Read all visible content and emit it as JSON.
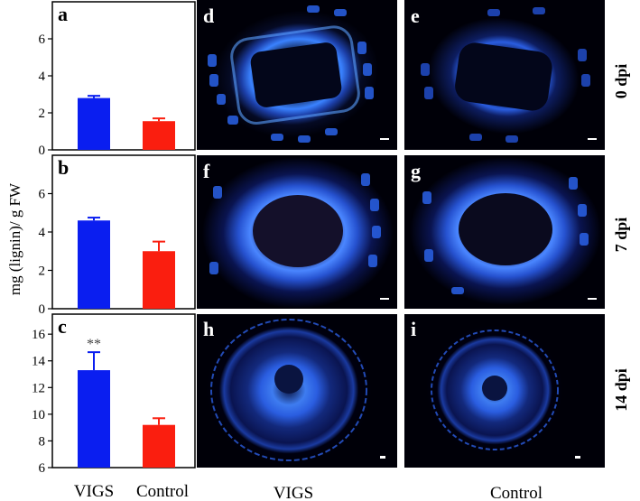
{
  "y_axis_label": "mg (lignin)/ g FW",
  "x_categories": [
    "VIGS",
    "Control"
  ],
  "column_labels": [
    "VIGS",
    "Control"
  ],
  "row_labels": [
    "0 dpi",
    "7 dpi",
    "14 dpi"
  ],
  "micrograph_letters": [
    [
      "d",
      "e"
    ],
    [
      "f",
      "g"
    ],
    [
      "h",
      "i"
    ]
  ],
  "colors": {
    "vigs_bar": "#0a1ef0",
    "control_bar": "#fa1e0f",
    "fluorescence": "#3a82ff"
  },
  "chart_data": [
    {
      "type": "bar",
      "panel": "a",
      "categories": [
        "VIGS",
        "Control"
      ],
      "values": [
        2.8,
        1.55
      ],
      "errors": [
        0.12,
        0.15
      ],
      "ylim": [
        0,
        8
      ],
      "yticks": [
        "0",
        "2",
        "4",
        "6"
      ],
      "annotations": []
    },
    {
      "type": "bar",
      "panel": "b",
      "categories": [
        "VIGS",
        "Control"
      ],
      "values": [
        4.6,
        3.0
      ],
      "errors": [
        0.15,
        0.5
      ],
      "ylim": [
        0,
        8
      ],
      "yticks": [
        "0",
        "2",
        "4",
        "6"
      ],
      "annotations": []
    },
    {
      "type": "bar",
      "panel": "c",
      "categories": [
        "VIGS",
        "Control"
      ],
      "values": [
        13.3,
        9.2
      ],
      "errors": [
        1.35,
        0.5
      ],
      "ylim": [
        6,
        17.5
      ],
      "yticks": [
        "6",
        "8",
        "10",
        "12",
        "14",
        "16"
      ],
      "annotations": [
        "**"
      ]
    }
  ]
}
